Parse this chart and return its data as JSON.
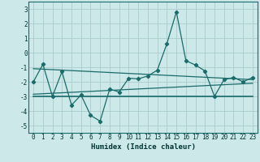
{
  "xlabel": "Humidex (Indice chaleur)",
  "bg_color": "#cce8e8",
  "grid_color": "#aacccc",
  "line_color": "#1a6b6b",
  "xlim": [
    -0.5,
    23.5
  ],
  "ylim": [
    -5.5,
    3.5
  ],
  "yticks": [
    3,
    2,
    1,
    0,
    -1,
    -2,
    -3,
    -4,
    -5
  ],
  "xticks": [
    0,
    1,
    2,
    3,
    4,
    5,
    6,
    7,
    8,
    9,
    10,
    11,
    12,
    13,
    14,
    15,
    16,
    17,
    18,
    19,
    20,
    21,
    22,
    23
  ],
  "main_line_x": [
    0,
    1,
    2,
    3,
    4,
    5,
    6,
    7,
    8,
    9,
    10,
    11,
    12,
    13,
    14,
    15,
    16,
    17,
    18,
    19,
    20,
    21,
    22,
    23
  ],
  "main_line_y": [
    -2.0,
    -0.8,
    -3.0,
    -1.3,
    -3.6,
    -2.9,
    -4.3,
    -4.7,
    -2.5,
    -2.7,
    -1.75,
    -1.8,
    -1.6,
    -1.2,
    0.6,
    2.8,
    -0.55,
    -0.85,
    -1.25,
    -3.0,
    -1.85,
    -1.7,
    -2.0,
    -1.7
  ],
  "trend1_x": [
    0,
    23
  ],
  "trend1_y": [
    -1.1,
    -1.85
  ],
  "trend2_x": [
    0,
    23
  ],
  "trend2_y": [
    -2.85,
    -2.1
  ],
  "trend3_x": [
    0,
    23
  ],
  "trend3_y": [
    -3.0,
    -3.0
  ],
  "tick_fontsize": 5.5,
  "xlabel_fontsize": 6.5
}
